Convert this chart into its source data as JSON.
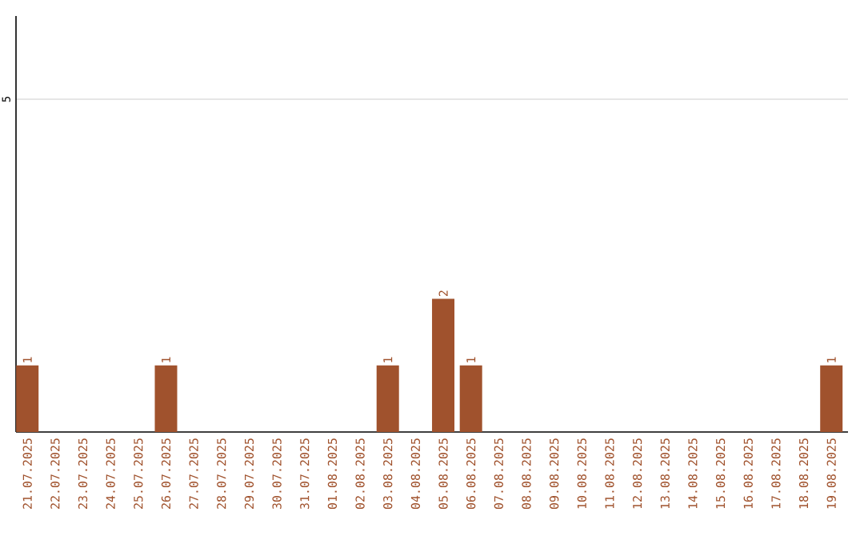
{
  "chart_data": {
    "type": "bar",
    "categories": [
      "21.07.2025",
      "22.07.2025",
      "23.07.2025",
      "24.07.2025",
      "25.07.2025",
      "26.07.2025",
      "27.07.2025",
      "28.07.2025",
      "29.07.2025",
      "30.07.2025",
      "31.07.2025",
      "01.08.2025",
      "02.08.2025",
      "03.08.2025",
      "04.08.2025",
      "05.08.2025",
      "06.08.2025",
      "07.08.2025",
      "08.08.2025",
      "09.08.2025",
      "10.08.2025",
      "11.08.2025",
      "12.08.2025",
      "13.08.2025",
      "14.08.2025",
      "15.08.2025",
      "16.08.2025",
      "17.08.2025",
      "18.08.2025",
      "19.08.2025"
    ],
    "values": [
      1,
      0,
      0,
      0,
      0,
      1,
      0,
      0,
      0,
      0,
      0,
      0,
      0,
      1,
      0,
      2,
      1,
      0,
      0,
      0,
      0,
      0,
      0,
      0,
      0,
      0,
      0,
      0,
      0,
      1
    ],
    "color": "#a0522d",
    "value_labels": [
      "1",
      null,
      null,
      null,
      null,
      "1",
      null,
      null,
      null,
      null,
      null,
      null,
      null,
      "1",
      null,
      "2",
      "1",
      null,
      null,
      null,
      null,
      null,
      null,
      null,
      null,
      null,
      null,
      null,
      null,
      "1"
    ],
    "ylim": [
      0,
      6.25
    ],
    "yticks": [
      5
    ],
    "grid": "y"
  }
}
